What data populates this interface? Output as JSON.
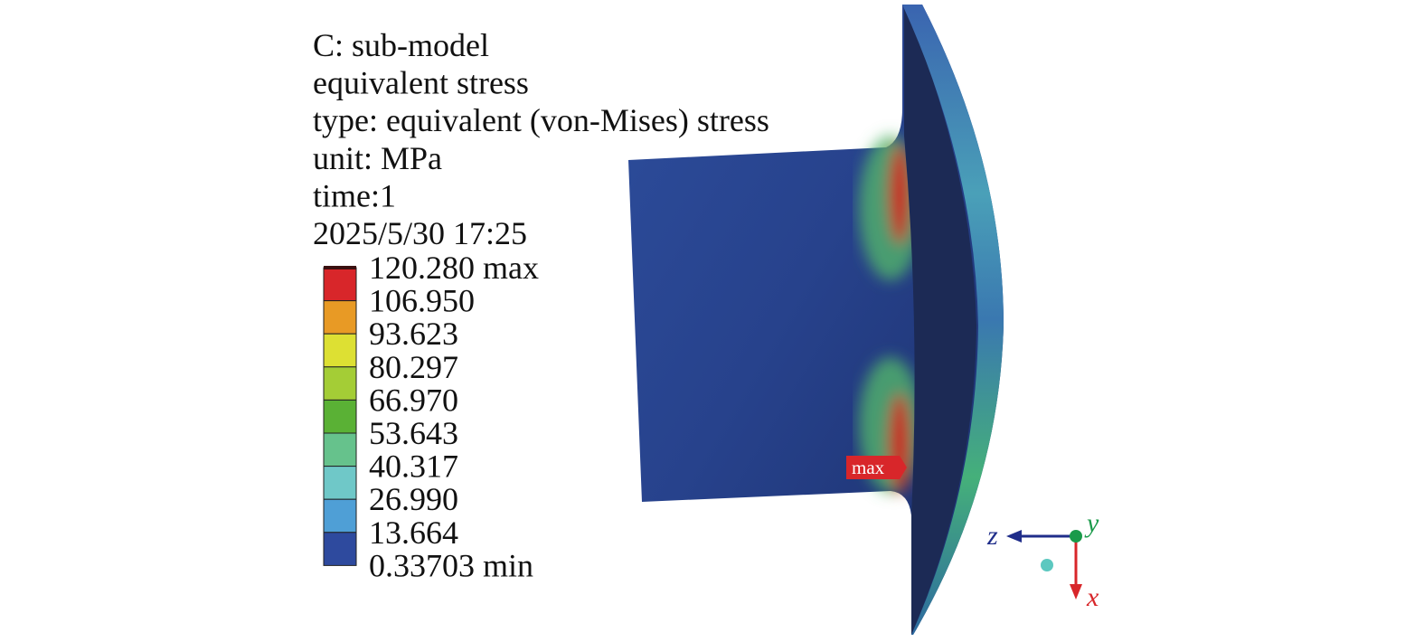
{
  "header": {
    "lines": [
      "C: sub-model",
      "equivalent stress",
      "type: equivalent (von-Mises) stress",
      "unit: MPa",
      "time:1",
      "2025/5/30 17:25"
    ]
  },
  "legend": {
    "labels": [
      "120.280 max",
      "106.950",
      "93.623",
      "80.297",
      "66.970",
      "53.643",
      "40.317",
      "26.990",
      "13.664",
      "0.33703 min"
    ],
    "colors": [
      "#d8262a",
      "#e89a25",
      "#dde033",
      "#a4cd36",
      "#5ab135",
      "#66c28c",
      "#6fc8c8",
      "#4f9fd6",
      "#2e4a9e"
    ]
  },
  "model": {
    "max_tag": "max"
  },
  "triad": {
    "z": "z",
    "y": "y",
    "x": "x"
  }
}
